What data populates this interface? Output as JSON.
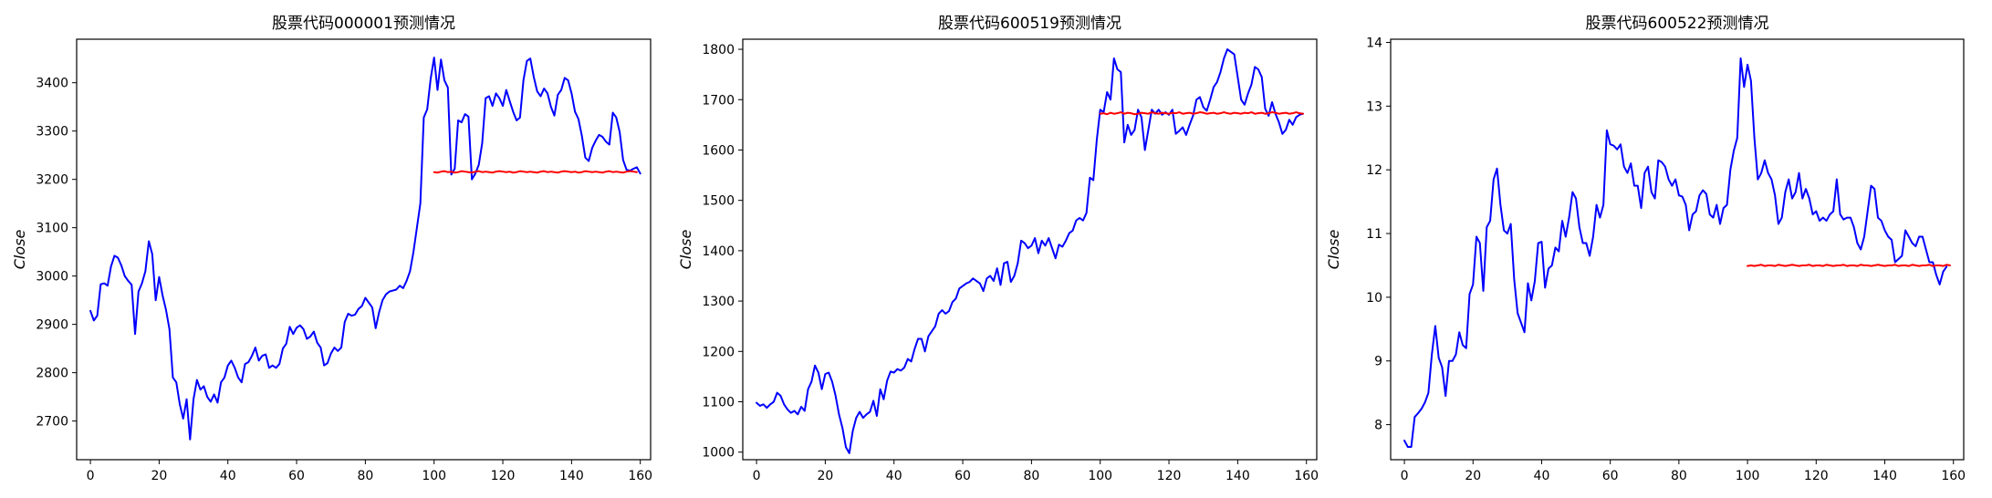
{
  "chart_data": [
    {
      "type": "line",
      "title": "股票代码000001预测情况",
      "xlabel": "",
      "ylabel": "Close",
      "xlim": [
        -4,
        163
      ],
      "ylim": [
        2620,
        3490
      ],
      "xticks": [
        0,
        20,
        40,
        60,
        80,
        100,
        120,
        140,
        160
      ],
      "yticks": [
        2700,
        2800,
        2900,
        3000,
        3100,
        3200,
        3300,
        3400
      ],
      "grid": false,
      "series": [
        {
          "color": "#0000ff",
          "x_start": 0,
          "values": [
            2928,
            2908,
            2918,
            2983,
            2985,
            2980,
            3020,
            3042,
            3038,
            3022,
            3000,
            2990,
            2982,
            2880,
            2968,
            2985,
            3010,
            3072,
            3045,
            2950,
            2998,
            2960,
            2930,
            2890,
            2790,
            2780,
            2735,
            2705,
            2745,
            2662,
            2745,
            2785,
            2765,
            2772,
            2750,
            2740,
            2755,
            2738,
            2780,
            2790,
            2815,
            2825,
            2810,
            2790,
            2780,
            2818,
            2822,
            2835,
            2852,
            2825,
            2835,
            2838,
            2810,
            2815,
            2810,
            2818,
            2850,
            2860,
            2895,
            2880,
            2893,
            2898,
            2890,
            2870,
            2875,
            2885,
            2862,
            2852,
            2815,
            2820,
            2840,
            2852,
            2845,
            2852,
            2905,
            2922,
            2918,
            2920,
            2932,
            2938,
            2955,
            2945,
            2935,
            2892,
            2925,
            2950,
            2962,
            2968,
            2970,
            2972,
            2980,
            2975,
            2990,
            3010,
            3050,
            3100,
            3150,
            3328,
            3345,
            3408,
            3452,
            3385,
            3448,
            3405,
            3390,
            3210,
            3222,
            3322,
            3318,
            3335,
            3330,
            3200,
            3212,
            3230,
            3275,
            3368,
            3372,
            3352,
            3378,
            3368,
            3352,
            3385,
            3362,
            3340,
            3322,
            3328,
            3405,
            3445,
            3450,
            3412,
            3382,
            3372,
            3388,
            3378,
            3350,
            3332,
            3375,
            3385,
            3410,
            3405,
            3378,
            3340,
            3325,
            3290,
            3245,
            3238,
            3265,
            3280,
            3292,
            3288,
            3278,
            3272,
            3338,
            3328,
            3298,
            3240,
            3220,
            3218,
            3222,
            3225,
            3212
          ]
        },
        {
          "color": "#ff0000",
          "x_start": 100,
          "values": [
            3215,
            3214,
            3216,
            3217,
            3215,
            3216,
            3214,
            3215,
            3217,
            3216,
            3215,
            3214,
            3216,
            3217,
            3215,
            3216,
            3215,
            3214,
            3216,
            3217,
            3216,
            3215,
            3216,
            3214,
            3215,
            3217,
            3216,
            3215,
            3216,
            3215,
            3214,
            3216,
            3217,
            3215,
            3216,
            3215,
            3214,
            3216,
            3217,
            3216,
            3215,
            3216,
            3214,
            3215,
            3217,
            3216,
            3215,
            3216,
            3215,
            3214,
            3216,
            3217,
            3215,
            3216,
            3215,
            3214,
            3216,
            3217,
            3216,
            3215
          ]
        }
      ]
    },
    {
      "type": "line",
      "title": "股票代码600519预测情况",
      "xlabel": "",
      "ylabel": "Close",
      "xlim": [
        -4,
        163
      ],
      "ylim": [
        985,
        1820
      ],
      "xticks": [
        0,
        20,
        40,
        60,
        80,
        100,
        120,
        140,
        160
      ],
      "yticks": [
        1000,
        1100,
        1200,
        1300,
        1400,
        1500,
        1600,
        1700,
        1800
      ],
      "grid": false,
      "series": [
        {
          "color": "#0000ff",
          "x_start": 0,
          "values": [
            1098,
            1092,
            1095,
            1088,
            1095,
            1100,
            1118,
            1112,
            1095,
            1085,
            1078,
            1082,
            1075,
            1090,
            1082,
            1125,
            1140,
            1172,
            1158,
            1125,
            1155,
            1158,
            1140,
            1112,
            1075,
            1048,
            1010,
            998,
            1042,
            1068,
            1080,
            1068,
            1075,
            1080,
            1102,
            1072,
            1125,
            1105,
            1142,
            1160,
            1158,
            1165,
            1162,
            1168,
            1185,
            1180,
            1205,
            1225,
            1225,
            1200,
            1230,
            1240,
            1250,
            1275,
            1282,
            1275,
            1280,
            1298,
            1305,
            1325,
            1330,
            1335,
            1338,
            1345,
            1340,
            1335,
            1320,
            1345,
            1350,
            1340,
            1365,
            1332,
            1375,
            1378,
            1338,
            1350,
            1375,
            1420,
            1415,
            1405,
            1410,
            1425,
            1395,
            1420,
            1410,
            1425,
            1405,
            1385,
            1412,
            1408,
            1420,
            1435,
            1440,
            1460,
            1465,
            1460,
            1475,
            1545,
            1540,
            1620,
            1680,
            1675,
            1715,
            1700,
            1782,
            1760,
            1755,
            1615,
            1650,
            1630,
            1640,
            1680,
            1665,
            1600,
            1640,
            1680,
            1672,
            1680,
            1670,
            1675,
            1670,
            1680,
            1632,
            1638,
            1645,
            1630,
            1650,
            1668,
            1700,
            1705,
            1685,
            1678,
            1700,
            1725,
            1735,
            1755,
            1782,
            1800,
            1795,
            1790,
            1745,
            1700,
            1690,
            1712,
            1730,
            1765,
            1760,
            1745,
            1682,
            1668,
            1695,
            1672,
            1655,
            1632,
            1640,
            1660,
            1650,
            1665,
            1670,
            1672
          ]
        },
        {
          "color": "#ff0000",
          "x_start": 100,
          "values": [
            1672,
            1673,
            1671,
            1674,
            1672,
            1673,
            1675,
            1672,
            1674,
            1673,
            1671,
            1672,
            1674,
            1673,
            1672,
            1675,
            1673,
            1672,
            1674,
            1673,
            1672,
            1674,
            1673,
            1675,
            1672,
            1673,
            1674,
            1672,
            1673,
            1675,
            1674,
            1672,
            1673,
            1674,
            1672,
            1673,
            1675,
            1673,
            1672,
            1674,
            1673,
            1672,
            1674,
            1673,
            1675,
            1672,
            1673,
            1674,
            1672,
            1673,
            1675,
            1674,
            1672,
            1673,
            1674,
            1672,
            1673,
            1675,
            1673,
            1672
          ]
        }
      ]
    },
    {
      "type": "line",
      "title": "股票代码600522预测情况",
      "xlabel": "",
      "ylabel": "Close",
      "xlim": [
        -4,
        163
      ],
      "ylim": [
        7.45,
        14.05
      ],
      "xticks": [
        0,
        20,
        40,
        60,
        80,
        100,
        120,
        140,
        160
      ],
      "yticks": [
        8,
        9,
        10,
        11,
        12,
        13,
        14
      ],
      "grid": false,
      "series": [
        {
          "color": "#0000ff",
          "x_start": 0,
          "values": [
            7.75,
            7.65,
            7.65,
            8.12,
            8.18,
            8.25,
            8.35,
            8.5,
            9.1,
            9.55,
            9.05,
            8.9,
            8.45,
            9.0,
            9.0,
            9.1,
            9.45,
            9.25,
            9.2,
            10.05,
            10.2,
            10.95,
            10.85,
            10.1,
            11.1,
            11.2,
            11.85,
            12.02,
            11.45,
            11.05,
            11.0,
            11.15,
            10.28,
            9.75,
            9.6,
            9.45,
            10.22,
            9.95,
            10.25,
            10.85,
            10.87,
            10.15,
            10.45,
            10.5,
            10.78,
            10.72,
            11.2,
            10.95,
            11.25,
            11.65,
            11.55,
            11.1,
            10.85,
            10.85,
            10.65,
            10.95,
            11.45,
            11.25,
            11.45,
            12.62,
            12.4,
            12.38,
            12.32,
            12.4,
            12.05,
            11.95,
            12.1,
            11.75,
            11.75,
            11.4,
            11.95,
            12.05,
            11.65,
            11.55,
            12.15,
            12.12,
            12.05,
            11.85,
            11.75,
            11.85,
            11.6,
            11.58,
            11.45,
            11.05,
            11.3,
            11.35,
            11.6,
            11.68,
            11.62,
            11.3,
            11.25,
            11.45,
            11.15,
            11.4,
            11.45,
            12.0,
            12.3,
            12.5,
            13.75,
            13.3,
            13.65,
            13.4,
            12.5,
            11.85,
            11.95,
            12.15,
            11.95,
            11.85,
            11.6,
            11.15,
            11.25,
            11.65,
            11.85,
            11.55,
            11.65,
            11.95,
            11.55,
            11.7,
            11.55,
            11.3,
            11.35,
            11.2,
            11.25,
            11.2,
            11.3,
            11.35,
            11.85,
            11.3,
            11.22,
            11.25,
            11.25,
            11.1,
            10.85,
            10.75,
            10.95,
            11.35,
            11.75,
            11.7,
            11.25,
            11.2,
            11.05,
            10.95,
            10.9,
            10.55,
            10.6,
            10.65,
            11.05,
            10.95,
            10.85,
            10.8,
            10.95,
            10.95,
            10.75,
            10.55,
            10.55,
            10.35,
            10.2,
            10.4,
            10.48
          ]
        },
        {
          "color": "#ff0000",
          "x_start": 100,
          "values": [
            10.49,
            10.5,
            10.49,
            10.5,
            10.51,
            10.49,
            10.5,
            10.5,
            10.49,
            10.51,
            10.5,
            10.49,
            10.5,
            10.51,
            10.5,
            10.49,
            10.5,
            10.5,
            10.51,
            10.49,
            10.5,
            10.5,
            10.49,
            10.51,
            10.5,
            10.49,
            10.5,
            10.5,
            10.51,
            10.49,
            10.5,
            10.5,
            10.49,
            10.51,
            10.5,
            10.5,
            10.49,
            10.5,
            10.51,
            10.5,
            10.49,
            10.5,
            10.5,
            10.51,
            10.49,
            10.5,
            10.5,
            10.49,
            10.51,
            10.5,
            10.49,
            10.5,
            10.5,
            10.51,
            10.49,
            10.5,
            10.5,
            10.49,
            10.51,
            10.5
          ]
        }
      ]
    }
  ]
}
